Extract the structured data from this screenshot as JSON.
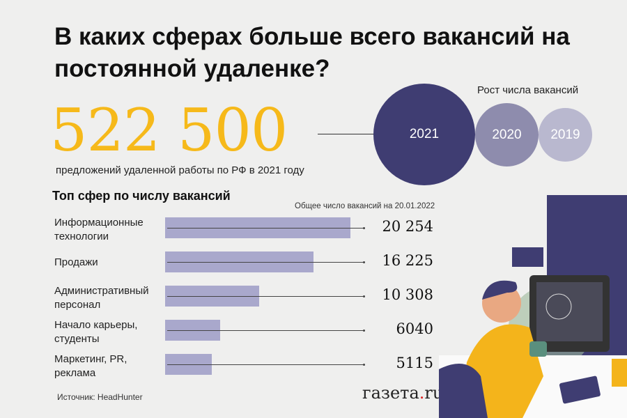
{
  "title": "В каких сферах больше всего вакансий на постоянной удаленке?",
  "headline_number": "522 500",
  "headline_caption": "предложений удаленной работы по РФ в 2021 году",
  "growth": {
    "label": "Рост числа вакансий",
    "years": [
      "2021",
      "2020",
      "2019"
    ],
    "colors": [
      "#3f3d72",
      "#8e8cad",
      "#b9b8cf"
    ]
  },
  "chart_data": {
    "type": "bar",
    "title": "Топ сфер по числу вакансий",
    "subtitle": "Общее число вакансий на 20.01.2022",
    "categories": [
      [
        "Информационные",
        "технологии"
      ],
      [
        "Продажи"
      ],
      [
        "Административный",
        "персонал"
      ],
      [
        "Начало карьеры,",
        "студенты"
      ],
      [
        "Маркетинг, PR,",
        "реклама"
      ]
    ],
    "values": [
      20254,
      16225,
      10308,
      6040,
      5115
    ],
    "value_labels": [
      "20 254",
      "16 225",
      "10 308",
      "6040",
      "5115"
    ],
    "bar_color": "#a9a8cc"
  },
  "source": "Источник: HeadHunter",
  "logo": {
    "main": "газета",
    "dot": ".",
    "tld": "ru"
  }
}
